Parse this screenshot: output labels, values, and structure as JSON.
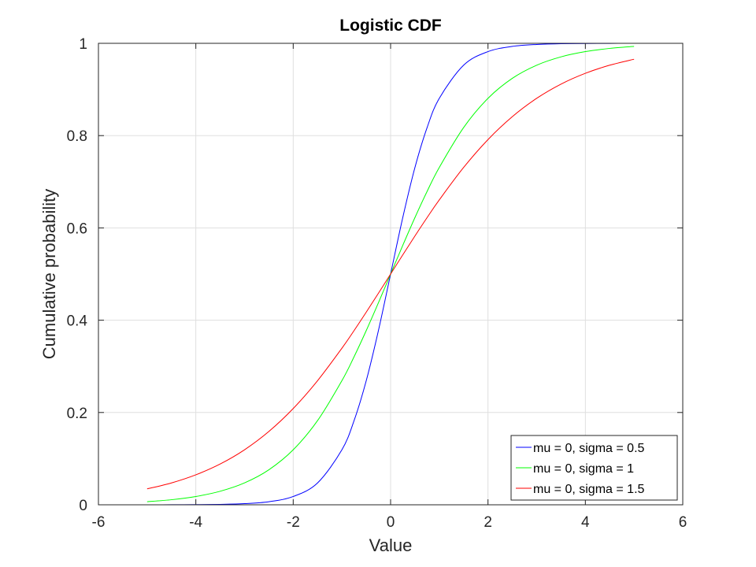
{
  "chart_data": {
    "type": "line",
    "title": "Logistic CDF",
    "xlabel": "Value",
    "ylabel": "Cumulative probability",
    "xlim": [
      -6,
      6
    ],
    "ylim": [
      0,
      1
    ],
    "xticks": [
      -6,
      -4,
      -2,
      0,
      2,
      4,
      6
    ],
    "yticks": [
      0,
      0.2,
      0.4,
      0.6,
      0.8,
      1
    ],
    "xtick_labels": [
      "-6",
      "-4",
      "-2",
      "0",
      "2",
      "4",
      "6"
    ],
    "ytick_labels": [
      "0",
      "0.2",
      "0.4",
      "0.6",
      "0.8",
      "1"
    ],
    "grid": true,
    "legend_position": "bottom-right",
    "x": [
      -5,
      -4.5,
      -4,
      -3.5,
      -3,
      -2.5,
      -2,
      -1.5,
      -1,
      -0.75,
      -0.5,
      -0.25,
      0,
      0.25,
      0.5,
      0.75,
      1,
      1.5,
      2,
      2.5,
      3,
      3.5,
      4,
      4.5,
      5
    ],
    "series": [
      {
        "name": "mu = 0, sigma = 0.5",
        "color": "#0000ff",
        "values": [
          4.54e-05,
          0.0001234,
          0.0003354,
          0.0009111,
          0.0024726,
          0.0066929,
          0.0179862,
          0.0474259,
          0.1192029,
          0.1824255,
          0.2689414,
          0.3775407,
          0.5,
          0.6224593,
          0.7310586,
          0.8175745,
          0.8807971,
          0.9525741,
          0.9820138,
          0.9933071,
          0.9975274,
          0.9990889,
          0.9996646,
          0.9998766,
          0.9999546
        ]
      },
      {
        "name": "mu = 0, sigma = 1",
        "color": "#00ff00",
        "values": [
          0.0066929,
          0.0109869,
          0.0179862,
          0.0293122,
          0.0474259,
          0.0758582,
          0.1192029,
          0.1824255,
          0.2689414,
          0.3208213,
          0.3775407,
          0.4378235,
          0.5,
          0.5621765,
          0.6224593,
          0.6791787,
          0.7310586,
          0.8175745,
          0.8807971,
          0.9241418,
          0.9525741,
          0.9706878,
          0.9820138,
          0.9890131,
          0.9933071
        ]
      },
      {
        "name": "mu = 0, sigma = 1.5",
        "color": "#ff0000",
        "values": [
          0.0344452,
          0.0474259,
          0.0649876,
          0.0884029,
          0.1192029,
          0.1588691,
          0.2086085,
          0.2689414,
          0.3392753,
          0.3775407,
          0.4174031,
          0.458419,
          0.5,
          0.541581,
          0.5825969,
          0.6224593,
          0.6607247,
          0.7310586,
          0.7913915,
          0.8411309,
          0.8807971,
          0.9115971,
          0.9350124,
          0.9525741,
          0.9655548
        ]
      }
    ]
  }
}
